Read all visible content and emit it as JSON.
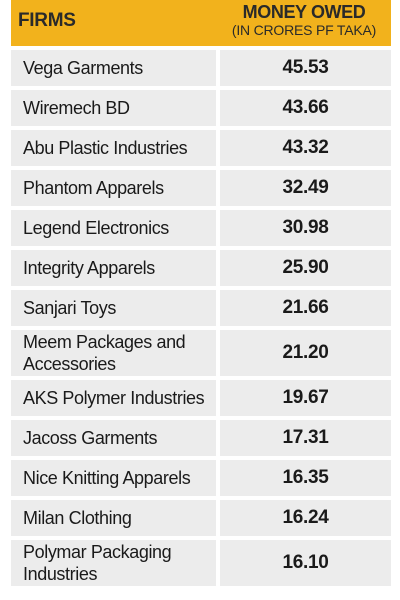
{
  "table": {
    "header": {
      "firms": "FIRMS",
      "money_title": "MONEY OWED",
      "money_subtitle": "(IN CRORES PF TAKA)"
    },
    "rows": [
      {
        "firm": "Vega Garments",
        "value": "45.53"
      },
      {
        "firm": "Wiremech BD",
        "value": "43.66"
      },
      {
        "firm": "Abu Plastic Industries",
        "value": "43.32"
      },
      {
        "firm": "Phantom Apparels",
        "value": "32.49"
      },
      {
        "firm": "Legend Electronics",
        "value": "30.98"
      },
      {
        "firm": "Integrity Apparels",
        "value": "25.90"
      },
      {
        "firm": "Sanjari Toys",
        "value": "21.66"
      },
      {
        "firm": "Meem Packages and Accessories",
        "value": "21.20"
      },
      {
        "firm": "AKS Polymer Industries",
        "value": "19.67"
      },
      {
        "firm": "Jacoss Garments",
        "value": "17.31"
      },
      {
        "firm": "Nice Knitting Apparels",
        "value": "16.35"
      },
      {
        "firm": "Milan Clothing",
        "value": "16.24"
      },
      {
        "firm": "Polymar Packaging Industries",
        "value": "16.10"
      }
    ]
  },
  "colors": {
    "header_bg": "#f2b21c",
    "cell_bg": "#ececec"
  }
}
